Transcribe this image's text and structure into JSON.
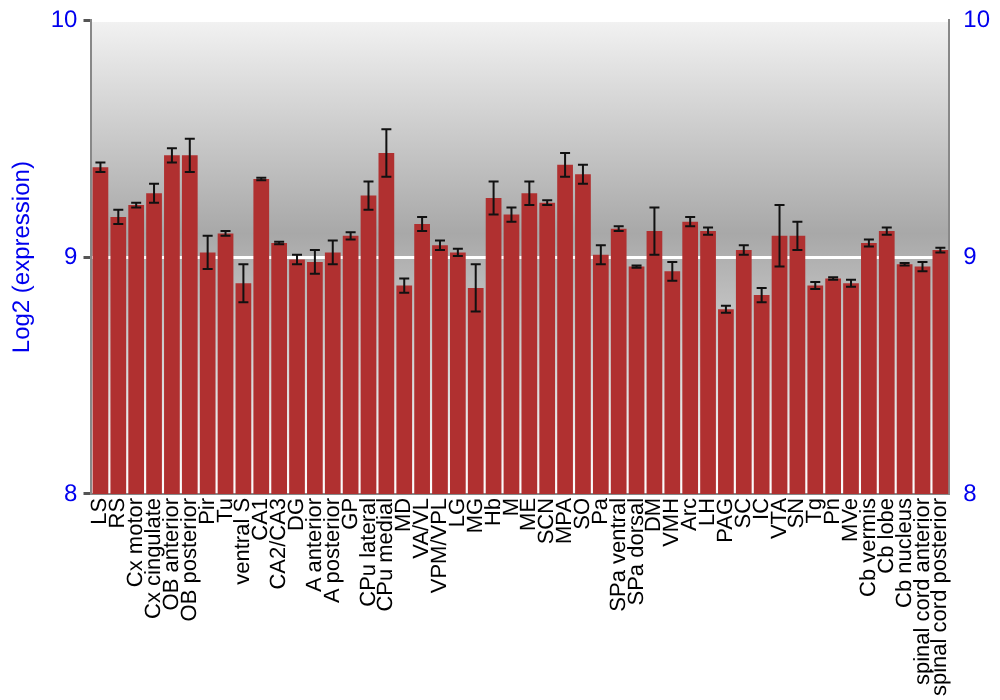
{
  "chart_data": {
    "type": "bar",
    "ylabel": "Log2 (expression)",
    "categories": [
      "LS",
      "RS",
      "Cx motor",
      "Cx cingulate",
      "OB anterior",
      "OB posterior",
      "Pir",
      "Tu",
      "ventral S",
      "CA1",
      "CA2/CA3",
      "DG",
      "A anterior",
      "A posterior",
      "GP",
      "CPu lateral",
      "CPu medial",
      "MD",
      "VA/VL",
      "VPM/VPL",
      "LG",
      "MG",
      "Hb",
      "M",
      "ME",
      "SCN",
      "MPA",
      "SO",
      "Pa",
      "SPa ventral",
      "SPa dorsal",
      "DM",
      "VMH",
      "Arc",
      "LH",
      "PAG",
      "SC",
      "IC",
      "VTA",
      "SN",
      "Tg",
      "Pn",
      "MVe",
      "Cb vermis",
      "Cb lobe",
      "Cb nucleus",
      "spinal cord anterior",
      "spinal cord posterior"
    ],
    "values": [
      9.38,
      9.17,
      9.22,
      9.27,
      9.43,
      9.43,
      9.02,
      9.1,
      8.89,
      9.33,
      9.06,
      8.99,
      8.98,
      9.02,
      9.09,
      9.26,
      9.44,
      8.88,
      9.14,
      9.05,
      9.02,
      8.87,
      9.25,
      9.18,
      9.27,
      9.23,
      9.39,
      9.35,
      9.01,
      9.12,
      8.96,
      9.11,
      8.94,
      9.15,
      9.11,
      8.78,
      9.03,
      8.84,
      9.09,
      9.09,
      8.88,
      8.91,
      8.89,
      9.06,
      9.11,
      8.97,
      8.96,
      9.03
    ],
    "errors": [
      0.02,
      0.03,
      0.01,
      0.04,
      0.03,
      0.07,
      0.07,
      0.01,
      0.08,
      0.005,
      0.005,
      0.02,
      0.05,
      0.05,
      0.015,
      0.06,
      0.1,
      0.03,
      0.03,
      0.02,
      0.015,
      0.1,
      0.07,
      0.03,
      0.05,
      0.01,
      0.05,
      0.04,
      0.04,
      0.01,
      0.005,
      0.1,
      0.04,
      0.02,
      0.015,
      0.015,
      0.02,
      0.03,
      0.13,
      0.06,
      0.015,
      0.005,
      0.015,
      0.015,
      0.015,
      0.005,
      0.02,
      0.01
    ],
    "color": "#b03030",
    "ylim": [
      8,
      10
    ],
    "yticks": [
      8,
      9,
      10
    ],
    "y2lim": [
      8,
      10
    ],
    "y2ticks": [
      8,
      9,
      10
    ],
    "grid": "y",
    "legend": false
  }
}
